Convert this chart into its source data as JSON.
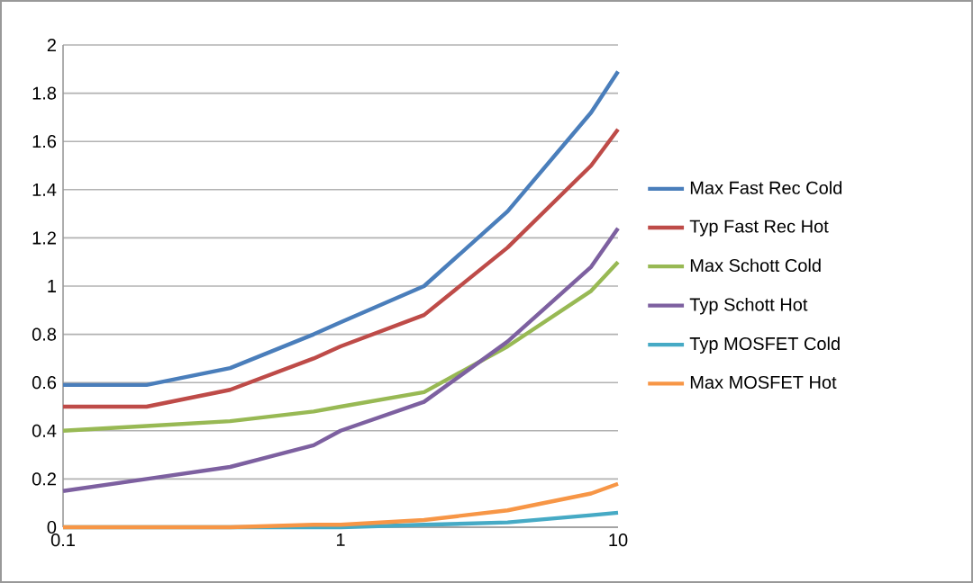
{
  "chart_data": {
    "type": "line",
    "log": "x",
    "grid": "y",
    "legend": "right",
    "marker": "none",
    "line_style": "solid",
    "x": [
      0.1,
      0.2,
      0.4,
      0.8,
      1,
      2,
      4,
      8,
      10
    ],
    "xlim": [
      0.1,
      10
    ],
    "xticks": [
      0.1,
      1,
      10
    ],
    "ylim": [
      0,
      2
    ],
    "yticks": [
      0,
      0.2,
      0.4,
      0.6,
      0.8,
      1,
      1.2,
      1.4,
      1.6,
      1.8,
      2
    ],
    "series": [
      {
        "name": "Max Fast Rec Cold",
        "color": "#4a7ebb",
        "values": [
          0.59,
          0.59,
          0.66,
          0.8,
          0.85,
          1.0,
          1.31,
          1.72,
          1.89
        ]
      },
      {
        "name": "Typ Fast Rec Hot",
        "color": "#be4b48",
        "values": [
          0.5,
          0.5,
          0.57,
          0.7,
          0.75,
          0.88,
          1.16,
          1.5,
          1.65
        ]
      },
      {
        "name": "Max Schott Cold",
        "color": "#98b954",
        "values": [
          0.4,
          0.42,
          0.44,
          0.48,
          0.5,
          0.56,
          0.75,
          0.98,
          1.1
        ]
      },
      {
        "name": "Typ Schott Hot",
        "color": "#7d60a0",
        "values": [
          0.15,
          0.2,
          0.25,
          0.34,
          0.4,
          0.52,
          0.77,
          1.08,
          1.24
        ]
      },
      {
        "name": "Typ MOSFET Cold",
        "color": "#46aac5",
        "values": [
          0,
          0,
          0,
          0,
          0,
          0.01,
          0.02,
          0.05,
          0.06
        ]
      },
      {
        "name": "Max MOSFET Hot",
        "color": "#f79646",
        "values": [
          0,
          0,
          0,
          0.01,
          0.01,
          0.03,
          0.07,
          0.14,
          0.18
        ]
      }
    ]
  }
}
